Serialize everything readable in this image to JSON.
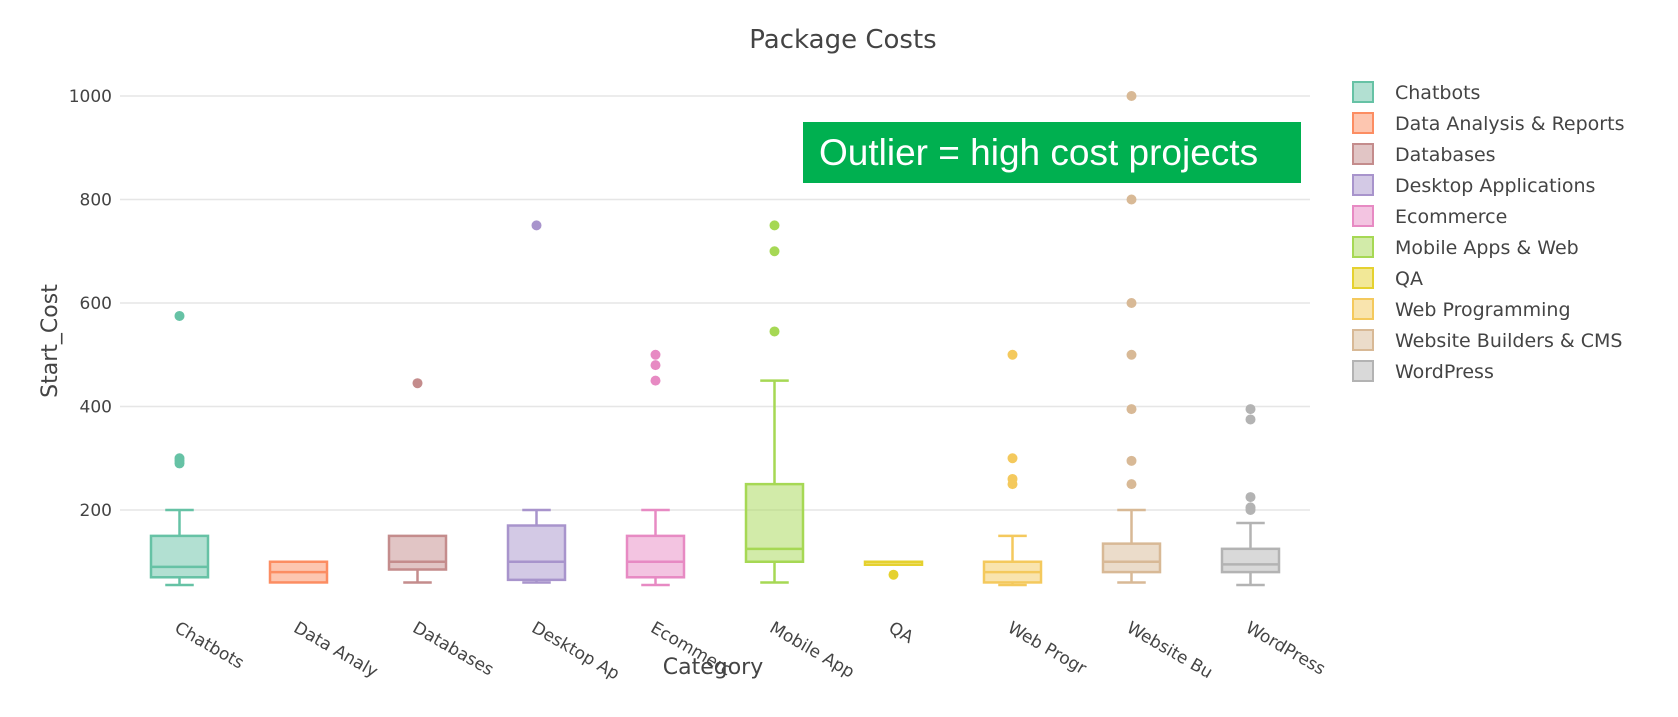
{
  "chart_data": {
    "type": "box",
    "title": "Package Costs",
    "xlabel": "Category",
    "ylabel": "Start_Cost",
    "ylim": [
      15,
      1050
    ],
    "yticks": [
      200,
      400,
      600,
      800,
      1000
    ],
    "grid": true,
    "legend_placement": "right",
    "categories": [
      "Chatbots",
      "Data Analysis & Reports",
      "Databases",
      "Desktop Applications",
      "Ecommerce",
      "Mobile Apps & Web",
      "QA",
      "Web Programming",
      "Website Builders & CMS",
      "WordPress"
    ],
    "x_tick_labels": [
      "Chatbots",
      "Data Analy",
      "Databases",
      "Desktop Ap",
      "Ecommerc",
      "Mobile App",
      "QA",
      "Web Progr",
      "Website Bu",
      "WordPress"
    ],
    "series": [
      {
        "name": "Chatbots",
        "color": "#66c2a5",
        "min": 55,
        "q1": 70,
        "median": 90,
        "q3": 150,
        "max": 200,
        "outliers": [
          290,
          295,
          300,
          575
        ]
      },
      {
        "name": "Data Analysis & Reports",
        "color": "#fc8d62",
        "min": 60,
        "q1": 60,
        "median": 80,
        "q3": 100,
        "max": 100,
        "outliers": []
      },
      {
        "name": "Databases",
        "color": "#c48c8c",
        "min": 60,
        "q1": 85,
        "median": 100,
        "q3": 150,
        "max": 150,
        "outliers": [
          445
        ]
      },
      {
        "name": "Desktop Applications",
        "color": "#a894cc",
        "min": 60,
        "q1": 65,
        "median": 100,
        "q3": 170,
        "max": 200,
        "outliers": [
          750
        ]
      },
      {
        "name": "Ecommerce",
        "color": "#e78ac3",
        "min": 55,
        "q1": 70,
        "median": 100,
        "q3": 150,
        "max": 200,
        "outliers": [
          450,
          480,
          500
        ]
      },
      {
        "name": "Mobile Apps & Web",
        "color": "#a6d854",
        "min": 60,
        "q1": 100,
        "median": 125,
        "q3": 250,
        "max": 450,
        "outliers": [
          545,
          700,
          750
        ]
      },
      {
        "name": "QA",
        "color": "#e5d12f",
        "min": 100,
        "q1": 100,
        "median": 100,
        "q3": 100,
        "max": 100,
        "outliers": [
          75
        ]
      },
      {
        "name": "Web Programming",
        "color": "#f4c95d",
        "min": 55,
        "q1": 60,
        "median": 80,
        "q3": 100,
        "max": 150,
        "outliers": [
          250,
          260,
          300,
          500
        ]
      },
      {
        "name": "Website Builders & CMS",
        "color": "#d8b996",
        "min": 60,
        "q1": 80,
        "median": 100,
        "q3": 135,
        "max": 200,
        "outliers": [
          250,
          295,
          395,
          500,
          600,
          800,
          1000
        ]
      },
      {
        "name": "WordPress",
        "color": "#b3b3b3",
        "min": 55,
        "q1": 80,
        "median": 95,
        "q3": 125,
        "max": 175,
        "outliers": [
          200,
          205,
          225,
          375,
          395
        ]
      }
    ]
  },
  "annotation": {
    "text": "Outlier = high cost projects",
    "color": "#00b050"
  }
}
